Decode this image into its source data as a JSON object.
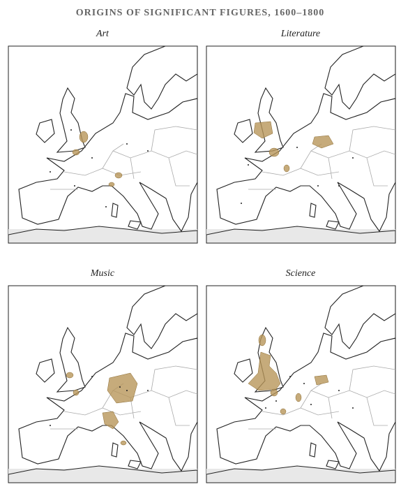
{
  "title": "ORIGINS OF SIGNIFICANT FIGURES, 1600–1800",
  "panels": [
    {
      "label": "Art"
    },
    {
      "label": "Literature"
    },
    {
      "label": "Music"
    },
    {
      "label": "Science"
    }
  ]
}
